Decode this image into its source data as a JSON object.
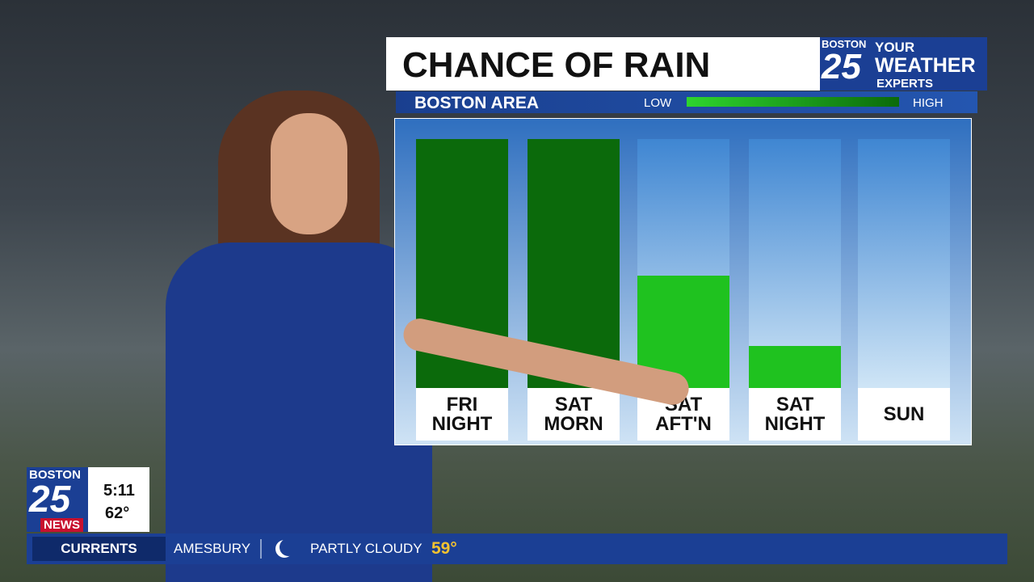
{
  "chart_data": {
    "type": "bar",
    "title": "CHANCE OF RAIN",
    "subtitle": "BOSTON AREA",
    "categories": [
      "FRI NIGHT",
      "SAT MORN",
      "SAT AFT'N",
      "SAT NIGHT",
      "SUN"
    ],
    "values": [
      100,
      100,
      45,
      17,
      0
    ],
    "colors": [
      "#0b6a0b",
      "#0b6a0b",
      "#1fc21f",
      "#1fc21f",
      "#1fc21f"
    ],
    "ylim": [
      0,
      100
    ],
    "legend": {
      "low": "LOW",
      "high": "HIGH"
    }
  },
  "logo": {
    "top": "BOSTON",
    "number": "25",
    "line1": "YOUR",
    "line2": "WEATHER",
    "line3": "EXPERTS"
  },
  "bug": {
    "top": "BOSTON",
    "number": "25",
    "bottom": "NEWS",
    "time": "5:11",
    "temp": "62°"
  },
  "ticker": {
    "label": "CURRENTS",
    "location": "AMESBURY",
    "condition": "PARTLY CLOUDY",
    "temp": "59°"
  }
}
